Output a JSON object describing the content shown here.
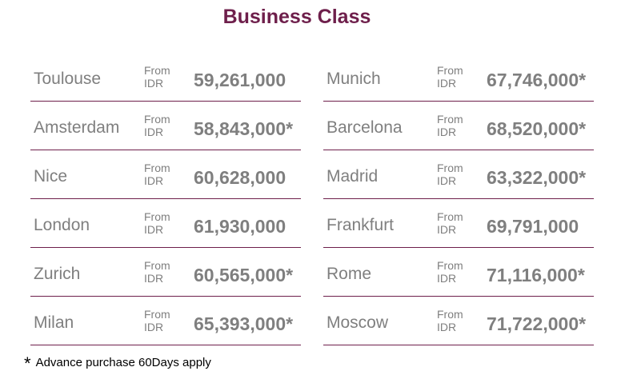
{
  "title": "Business Class",
  "from_label": "From",
  "currency": "IDR",
  "left": [
    {
      "city": "Toulouse",
      "price": "59,261,000"
    },
    {
      "city": "Amsterdam",
      "price": "58,843,000*"
    },
    {
      "city": "Nice",
      "price": "60,628,000"
    },
    {
      "city": "London",
      "price": "61,930,000"
    },
    {
      "city": "Zurich",
      "price": "60,565,000*"
    },
    {
      "city": "Milan",
      "price": "65,393,000*"
    }
  ],
  "right": [
    {
      "city": "Munich",
      "price": "67,746,000*"
    },
    {
      "city": "Barcelona",
      "price": "68,520,000*"
    },
    {
      "city": "Madrid",
      "price": "63,322,000*"
    },
    {
      "city": "Frankfurt",
      "price": "69,791,000"
    },
    {
      "city": "Rome",
      "price": "71,116,000*"
    },
    {
      "city": "Moscow",
      "price": "71,722,000*"
    }
  ],
  "footnote": {
    "symbol": "*",
    "text": "Advance purchase 60Days apply"
  },
  "colors": {
    "accent": "#6e1f4b",
    "text": "#7f7f7f"
  }
}
